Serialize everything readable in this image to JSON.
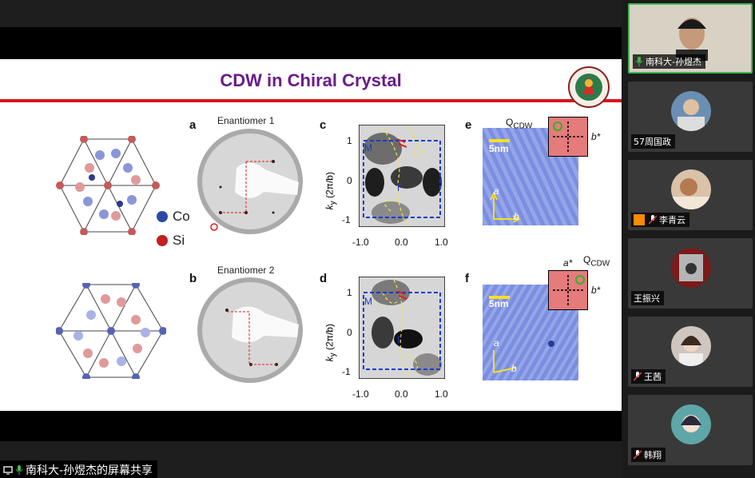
{
  "slide": {
    "title": "CDW in Chiral Crystal",
    "panels": {
      "a": "a",
      "b": "b",
      "c": "c",
      "d": "d",
      "e": "e",
      "f": "f"
    },
    "enantiomer1": "Enantiomer 1",
    "enantiomer2": "Enantiomer 2",
    "legend": {
      "co": "Co",
      "si": "Si"
    },
    "arpes": {
      "ylabel": "k",
      "ylabel_sub": "y",
      "ylabel_unit": "(2π/b)",
      "yticks": [
        "1",
        "0",
        "-1"
      ],
      "xticks": [
        "-1.0",
        "0.0",
        "1.0"
      ],
      "point_M": "M",
      "point_G": "Γ"
    },
    "stm": {
      "scale": "5nm",
      "axis_a": "a",
      "axis_b": "b",
      "axis_a_star": "a*",
      "axis_b_star": "b*",
      "qcdw": "Q",
      "qcdw_sub": "CDW"
    }
  },
  "share": {
    "label": "南科大-孙煜杰的屏幕共享"
  },
  "participants": [
    {
      "name": "南科大-孙煜杰",
      "mic": "on",
      "active": true
    },
    {
      "name": "57周国政",
      "mic": "none",
      "active": false
    },
    {
      "name": "李青云",
      "mic": "muted",
      "active": false
    },
    {
      "name": "王振兴",
      "mic": "none",
      "active": false
    },
    {
      "name": "王茜",
      "mic": "muted",
      "active": false
    },
    {
      "name": "韩翔",
      "mic": "muted",
      "active": false
    }
  ],
  "colors": {
    "title": "#6a1b8a",
    "rule": "#d8141b",
    "co": "#2b4aa8",
    "si": "#c41e1e",
    "active_border": "#3fb950"
  }
}
